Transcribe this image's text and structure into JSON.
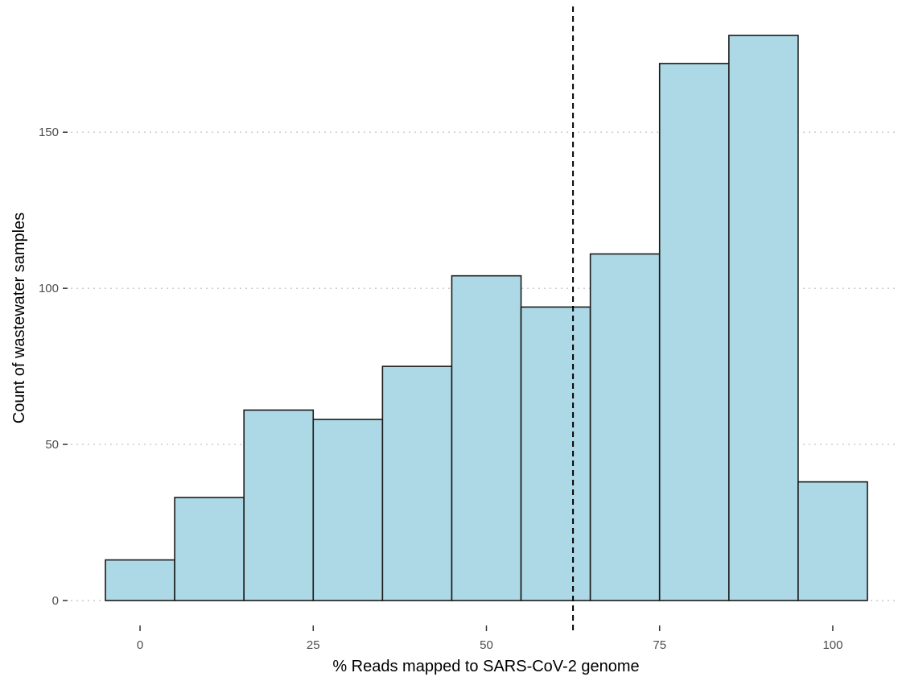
{
  "chart_data": {
    "type": "bar",
    "subtype": "histogram",
    "title": "",
    "xlabel": "% Reads mapped to SARS-CoV-2 genome",
    "ylabel": "Count of wastewater samples",
    "xlim": [
      -5,
      105
    ],
    "ylim": [
      0,
      181
    ],
    "bin_width": 10,
    "bins": [
      {
        "x0": -5,
        "x1": 5,
        "count": 13
      },
      {
        "x0": 5,
        "x1": 15,
        "count": 33
      },
      {
        "x0": 15,
        "x1": 25,
        "count": 61
      },
      {
        "x0": 25,
        "x1": 35,
        "count": 58
      },
      {
        "x0": 35,
        "x1": 45,
        "count": 75
      },
      {
        "x0": 45,
        "x1": 55,
        "count": 104
      },
      {
        "x0": 55,
        "x1": 65,
        "count": 94
      },
      {
        "x0": 65,
        "x1": 75,
        "count": 111
      },
      {
        "x0": 75,
        "x1": 85,
        "count": 172
      },
      {
        "x0": 85,
        "x1": 95,
        "count": 181
      },
      {
        "x0": 95,
        "x1": 105,
        "count": 38
      }
    ],
    "x_ticks": [
      0,
      25,
      50,
      75,
      100
    ],
    "y_ticks": [
      0,
      50,
      100,
      150
    ],
    "reference_line": {
      "axis": "x",
      "value": 62.5,
      "style": "dashed",
      "color": "#000000"
    },
    "bar_fill": "#add8e6",
    "bar_outline": "#1a1a1a",
    "grid": "horizontal-dotted",
    "legend": "none"
  }
}
